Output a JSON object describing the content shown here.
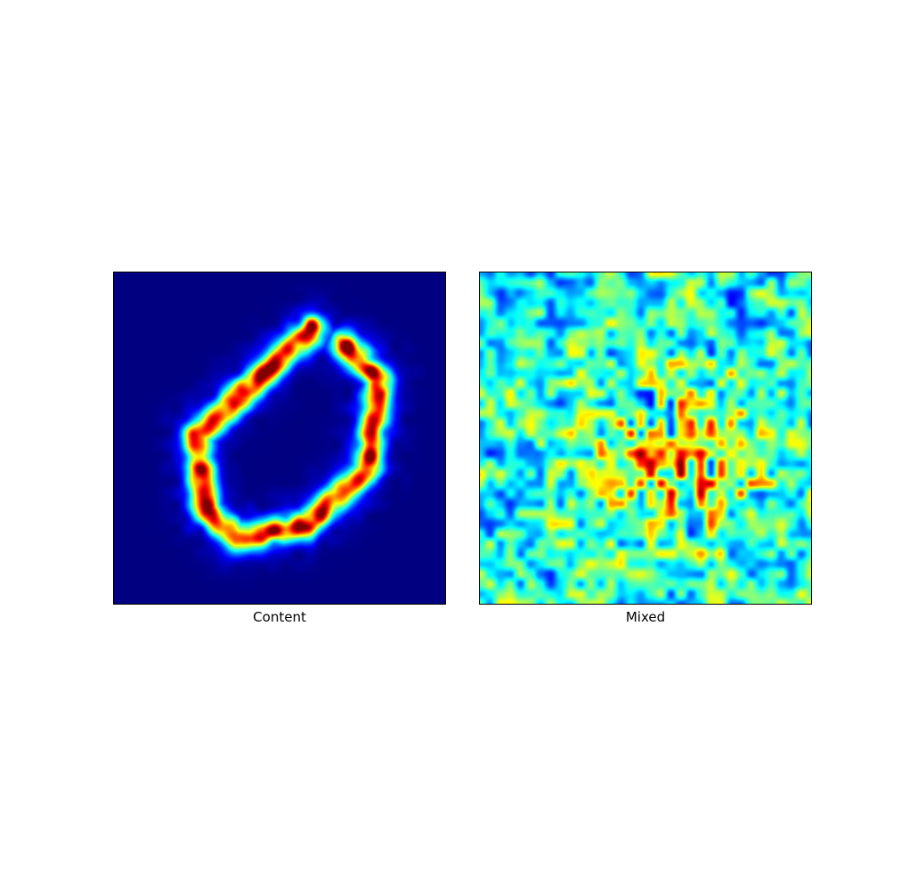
{
  "panels": [
    {
      "caption": "Content",
      "colormap": "jet",
      "content": "hollow-polygonal-ring-digit-zero"
    },
    {
      "caption": "Mixed",
      "colormap": "jet",
      "content": "noisy-texture-with-central-blob"
    }
  ],
  "colors": {
    "background": "#ffffff",
    "frame": "#000000",
    "jet_low": "#00007f",
    "jet_high": "#7f0000"
  }
}
